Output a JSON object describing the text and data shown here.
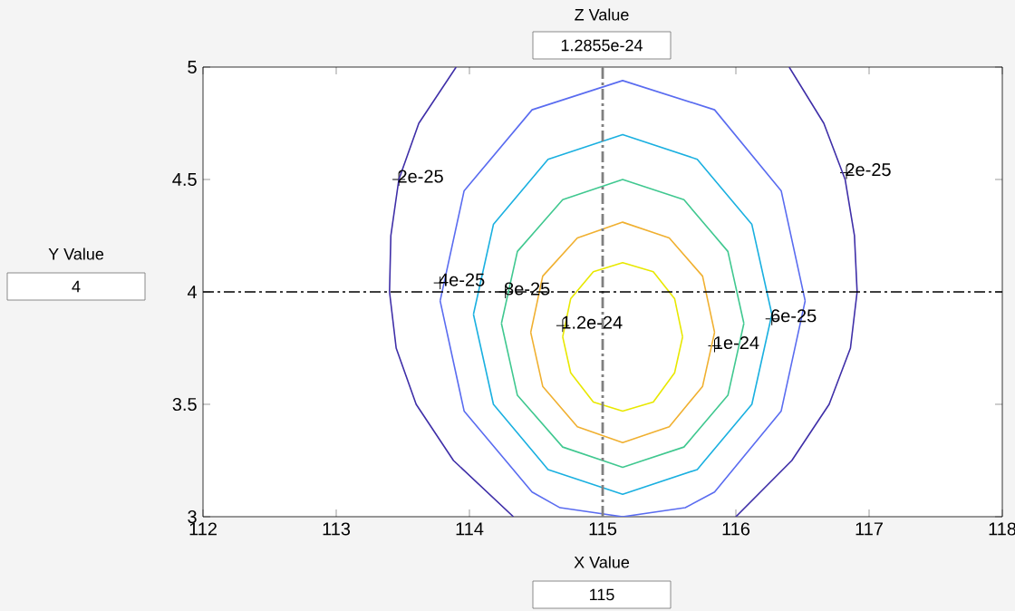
{
  "chart_data": {
    "type": "line",
    "xlim": [
      112,
      118
    ],
    "xticks": [
      112,
      113,
      114,
      115,
      116,
      117,
      118
    ],
    "ylim": [
      3,
      5
    ],
    "yticks": [
      3,
      3.5,
      4,
      4.5,
      5
    ],
    "grid": false,
    "marker": "none",
    "series": [
      {
        "color": "#3f2fa8",
        "x": [
          113.9,
          113.62,
          113.47,
          113.41,
          113.4,
          113.45,
          113.6,
          113.88,
          114.33,
          null,
          116.0,
          116.42,
          116.7,
          116.86,
          116.91,
          116.89,
          116.82,
          116.66,
          116.4
        ],
        "values": [
          5.0,
          4.75,
          4.5,
          4.25,
          4.0,
          3.75,
          3.5,
          3.25,
          3.0,
          null,
          3.0,
          3.25,
          3.5,
          3.75,
          4.0,
          4.25,
          4.5,
          4.75,
          5.0
        ]
      },
      {
        "color": "#5a6cf0",
        "x": [
          113.78,
          113.96,
          114.47,
          115.15,
          115.84,
          116.34,
          116.52,
          null,
          113.78,
          113.96,
          114.47,
          114.68,
          115.15,
          115.62,
          115.84,
          116.34,
          116.52
        ],
        "values": [
          3.96,
          4.45,
          4.81,
          4.94,
          4.81,
          4.45,
          3.96,
          null,
          3.96,
          3.47,
          3.11,
          3.04,
          3.0,
          3.04,
          3.11,
          3.47,
          3.96
        ]
      },
      {
        "color": "#1ab0e0",
        "x": [
          114.03,
          114.18,
          114.59,
          115.15,
          115.71,
          116.12,
          116.27,
          null,
          114.03,
          114.18,
          114.59,
          115.15,
          115.71,
          116.12,
          116.27
        ],
        "values": [
          3.9,
          4.3,
          4.59,
          4.7,
          4.59,
          4.3,
          3.9,
          null,
          3.9,
          3.5,
          3.21,
          3.1,
          3.21,
          3.5,
          3.9
        ]
      },
      {
        "color": "#40c890",
        "x": [
          114.24,
          114.36,
          114.7,
          115.15,
          115.61,
          115.94,
          116.06,
          null,
          114.24,
          114.36,
          114.7,
          115.15,
          115.61,
          115.94,
          116.06
        ],
        "values": [
          3.86,
          4.18,
          4.41,
          4.5,
          4.41,
          4.18,
          3.86,
          null,
          3.86,
          3.54,
          3.31,
          3.22,
          3.31,
          3.54,
          3.86
        ]
      },
      {
        "color": "#f0b030",
        "x": [
          114.46,
          114.55,
          114.81,
          115.15,
          115.5,
          115.75,
          115.84,
          null,
          114.46,
          114.55,
          114.81,
          115.15,
          115.5,
          115.75,
          115.84
        ],
        "values": [
          3.82,
          4.07,
          4.24,
          4.31,
          4.24,
          4.07,
          3.82,
          null,
          3.82,
          3.58,
          3.4,
          3.33,
          3.4,
          3.58,
          3.82
        ]
      },
      {
        "color": "#e8e800",
        "x": [
          114.7,
          114.76,
          114.93,
          115.15,
          115.38,
          115.54,
          115.6,
          null,
          114.7,
          114.76,
          114.93,
          115.15,
          115.38,
          115.54,
          115.6
        ],
        "values": [
          3.8,
          3.97,
          4.09,
          4.13,
          4.09,
          3.97,
          3.8,
          null,
          3.8,
          3.64,
          3.51,
          3.47,
          3.51,
          3.64,
          3.8
        ]
      }
    ],
    "ref_lines": [
      {
        "axis": "x",
        "value": 115,
        "color": "#808080"
      },
      {
        "axis": "y",
        "value": 4,
        "color": "#000000"
      }
    ],
    "annotations": [
      {
        "text": "2e-25",
        "x": 113.47,
        "y": 4.5
      },
      {
        "text": "2e-25",
        "x": 116.83,
        "y": 4.53
      },
      {
        "text": "4e-25",
        "x": 113.78,
        "y": 4.04
      },
      {
        "text": "8e-25",
        "x": 114.27,
        "y": 4.0
      },
      {
        "text": "1.2e-24",
        "x": 114.7,
        "y": 3.85
      },
      {
        "text": "1e-24",
        "x": 115.84,
        "y": 3.76
      },
      {
        "text": "6e-25",
        "x": 116.27,
        "y": 3.88
      },
      "Z Value",
      "1.2855e-24",
      "Y Value",
      "4",
      "X Value",
      "115"
    ]
  }
}
